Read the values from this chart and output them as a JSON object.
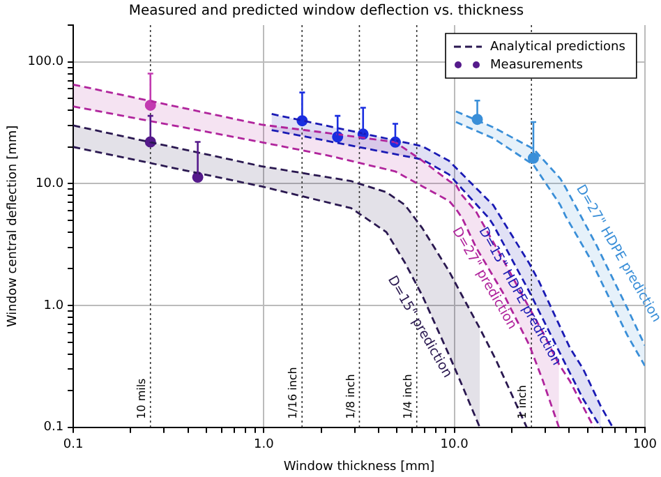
{
  "chart_data": {
    "type": "line",
    "title": "Measured and predicted window deflection vs. thickness",
    "xlabel": "Window thickness [mm]",
    "ylabel": "Window central deflection [mm]",
    "log": "xy",
    "grid": true,
    "legend": "top right",
    "line_style": "dashed",
    "xlim": [
      0.1,
      100
    ],
    "ylim": [
      0.1,
      200
    ],
    "xticks": [
      0.1,
      {
        "value": 0.2,
        "label": null
      },
      {
        "value": 0.3,
        "label": null
      },
      {
        "value": 0.4,
        "label": null
      },
      {
        "value": 0.5,
        "label": null
      },
      {
        "value": 0.6,
        "label": null
      },
      {
        "value": 0.7,
        "label": null
      },
      {
        "value": 0.8,
        "label": null
      },
      {
        "value": 0.9,
        "label": null
      },
      {
        "value": 1,
        "label": "1.0"
      },
      {
        "value": 2,
        "label": null
      },
      {
        "value": 3,
        "label": null
      },
      {
        "value": 4,
        "label": null
      },
      {
        "value": 5,
        "label": null
      },
      {
        "value": 6,
        "label": null
      },
      {
        "value": 7,
        "label": null
      },
      {
        "value": 8,
        "label": null
      },
      {
        "value": 9,
        "label": null
      },
      {
        "value": 10,
        "label": "10.0"
      },
      {
        "value": 20,
        "label": null
      },
      {
        "value": 30,
        "label": null
      },
      {
        "value": 40,
        "label": null
      },
      {
        "value": 50,
        "label": null
      },
      {
        "value": 60,
        "label": null
      },
      {
        "value": 70,
        "label": null
      },
      {
        "value": 80,
        "label": null
      },
      {
        "value": 90,
        "label": null
      },
      100
    ],
    "yticks": [
      0.1,
      {
        "value": 0.2,
        "label": null
      },
      {
        "value": 0.3,
        "label": null
      },
      {
        "value": 0.4,
        "label": null
      },
      {
        "value": 0.5,
        "label": null
      },
      {
        "value": 0.6,
        "label": null
      },
      {
        "value": 0.7,
        "label": null
      },
      {
        "value": 0.8,
        "label": null
      },
      {
        "value": 0.9,
        "label": null
      },
      {
        "value": 1,
        "label": "1.0"
      },
      {
        "value": 2,
        "label": null
      },
      {
        "value": 3,
        "label": null
      },
      {
        "value": 4,
        "label": null
      },
      {
        "value": 5,
        "label": null
      },
      {
        "value": 6,
        "label": null
      },
      {
        "value": 7,
        "label": null
      },
      {
        "value": 8,
        "label": null
      },
      {
        "value": 9,
        "label": null
      },
      {
        "value": 10,
        "label": "10.0"
      },
      {
        "value": 20,
        "label": null
      },
      {
        "value": 30,
        "label": null
      },
      {
        "value": 40,
        "label": null
      },
      {
        "value": 50,
        "label": null
      },
      {
        "value": 60,
        "label": null
      },
      {
        "value": 70,
        "label": null
      },
      {
        "value": 80,
        "label": null
      },
      {
        "value": 90,
        "label": null
      },
      {
        "value": 100,
        "label": "100.0"
      },
      {
        "value": 200,
        "label": null
      }
    ],
    "series": [
      {
        "name": "Analytical predictions",
        "color": "#2a1850",
        "x": [
          0.1,
          0.97,
          2.87,
          4.4,
          5.5,
          6.8,
          9.4,
          11.0,
          13.6,
          16.5,
          24
        ],
        "values": [
          30,
          13.9,
          10.5,
          8.5,
          6.7,
          4.3,
          1.9,
          1.2,
          0.65,
          0.36,
          0.1
        ],
        "upper": [
          30,
          13.9,
          10.5,
          8.5,
          6.7,
          4.3,
          1.9,
          1.2,
          0.65,
          null,
          null
        ],
        "lower": [
          20,
          9.5,
          6.3,
          4.0,
          2.25,
          1.2,
          0.39,
          0.22,
          0.1,
          null,
          null
        ]
      },
      {
        "color": "#b0249c",
        "x": [
          0.1,
          0.97,
          2.18,
          4.9,
          6.8,
          9.4,
          10.2,
          11.0,
          13.0,
          17.9,
          24.8,
          29.2,
          35.4,
          40.4,
          54
        ],
        "values": [
          65,
          30.5,
          26,
          21.9,
          15.4,
          10.5,
          9.75,
          8,
          5.9,
          2.43,
          0.95,
          0.6,
          0.33,
          0.24,
          0.1
        ],
        "upper": [
          65,
          30.5,
          26,
          21.9,
          15.4,
          10.5,
          9.75,
          8,
          5.9,
          2.43,
          0.95,
          0.6,
          0.33,
          null,
          null
        ],
        "lower": [
          43,
          21.9,
          17.0,
          12.6,
          9.5,
          7.2,
          6.2,
          5.2,
          3.0,
          1.29,
          0.47,
          0.24,
          0.1,
          null,
          null
        ]
      },
      {
        "color": "#1a1ab4",
        "x": [
          1.1,
          6.78,
          9.37,
          15.2,
          16.0,
          24.8,
          27.8,
          40.4,
          47.5,
          58.6,
          67.8
        ],
        "values": [
          37.3,
          20.3,
          15.4,
          7.2,
          6.67,
          2.2,
          1.58,
          0.45,
          0.3,
          0.15,
          0.1
        ],
        "upper": [
          37.3,
          20.3,
          15.4,
          7.2,
          6.67,
          2.2,
          1.58,
          0.45,
          0.3,
          0.15,
          null
        ],
        "lower": [
          27.5,
          15.8,
          11.9,
          5.2,
          4.6,
          1.29,
          0.9,
          0.28,
          0.17,
          0.1,
          null
        ]
      },
      {
        "color": "#3a8fd8",
        "x": [
          10.2,
          16.0,
          26.0,
          36.0,
          38.4,
          53.1,
          55.7,
          80.9,
          100
        ],
        "values": [
          39.2,
          29.0,
          19.3,
          11,
          9.27,
          3.6,
          3.13,
          0.95,
          0.47
        ],
        "upper": [
          39.2,
          29.0,
          19.3,
          11,
          9.27,
          3.6,
          3.13,
          0.95,
          0.47
        ],
        "lower": [
          32.0,
          23.6,
          14.3,
          6.67,
          5.4,
          2.25,
          1.9,
          0.57,
          0.32
        ]
      },
      {
        "color": "#2a1850",
        "x": [
          0.1,
          0.97,
          2.87,
          4.4,
          5.5,
          6.8,
          9.4,
          11.0,
          13.6
        ],
        "values": [
          20,
          9.5,
          6.3,
          4.0,
          2.25,
          1.2,
          0.39,
          0.22,
          0.1
        ]
      },
      {
        "color": "#b0249c",
        "x": [
          0.1,
          0.97,
          2.18,
          4.9,
          6.8,
          9.4,
          10.2,
          11.0,
          13.0,
          17.9,
          24.8,
          29.2,
          35.4
        ],
        "values": [
          43,
          21.9,
          17.0,
          12.6,
          9.5,
          7.2,
          6.2,
          5.2,
          3.0,
          1.29,
          0.47,
          0.24,
          0.1
        ]
      },
      {
        "color": "#1a1ab4",
        "x": [
          1.1,
          6.78,
          9.37,
          15.2,
          16.0,
          24.8,
          27.8,
          40.4,
          47.5,
          58.6
        ],
        "values": [
          27.5,
          15.8,
          11.9,
          5.2,
          4.6,
          1.29,
          0.9,
          0.28,
          0.17,
          0.1
        ]
      },
      {
        "color": "#3a8fd8",
        "x": [
          10.2,
          16.0,
          26.0,
          36.0,
          38.4,
          53.1,
          55.7,
          80.9,
          100
        ],
        "values": [
          32.0,
          23.6,
          14.3,
          6.67,
          5.4,
          2.25,
          1.9,
          0.57,
          0.32
        ]
      },
      {
        "type": "scatter",
        "name": "Measurements",
        "marker": "circle",
        "color": "#551a8b",
        "x": [
          0.254,
          0.45
        ],
        "values": [
          22,
          11.3
        ],
        "errors": [
          [
            22,
            36
          ],
          [
            11.3,
            22
          ]
        ]
      },
      {
        "type": "scatter",
        "marker": "circle",
        "color": "#c23ab0",
        "x": [
          0.254
        ],
        "values": [
          44
        ],
        "errors": [
          [
            44,
            80
          ]
        ]
      },
      {
        "type": "scatter",
        "marker": "circle",
        "color": "#1a2ee0",
        "x": [
          1.59,
          2.44,
          3.32,
          4.9
        ],
        "values": [
          32.8,
          24.2,
          25.5,
          21.9
        ],
        "errors": [
          [
            32.8,
            56
          ],
          [
            24.2,
            36
          ],
          [
            25.5,
            42
          ],
          [
            21.9,
            31
          ]
        ]
      },
      {
        "type": "scatter",
        "marker": "circle",
        "color": "#3a8fd8",
        "x": [
          13.2,
          26.0
        ],
        "values": [
          33.7,
          16.2
        ],
        "errors": [
          [
            33.7,
            48
          ],
          [
            16.2,
            32
          ]
        ]
      }
    ],
    "ref_lines": [
      {
        "axis": "x",
        "value": 0.254,
        "label": "10 mils"
      },
      {
        "axis": "x",
        "value": 1.5875,
        "label": "1/16 inch"
      },
      {
        "axis": "x",
        "value": 3.175,
        "label": "1/8 inch"
      },
      {
        "axis": "x",
        "value": 6.35,
        "label": "1/4 inch"
      },
      {
        "axis": "x",
        "value": 25.4,
        "label": "1 inch"
      }
    ],
    "annotations": [
      {
        "text": "D=15\" prediction",
        "x": 5.5,
        "y": 2.25
      },
      {
        "text": "D=27\" prediction",
        "x": 11.0,
        "y": 5.2
      },
      {
        "text": "D=15\" HDPE prediction",
        "x": 15.2,
        "y": 5.2
      },
      {
        "text": "D=27\" HDPE prediction",
        "x": 38.4,
        "y": 9.27
      }
    ]
  }
}
